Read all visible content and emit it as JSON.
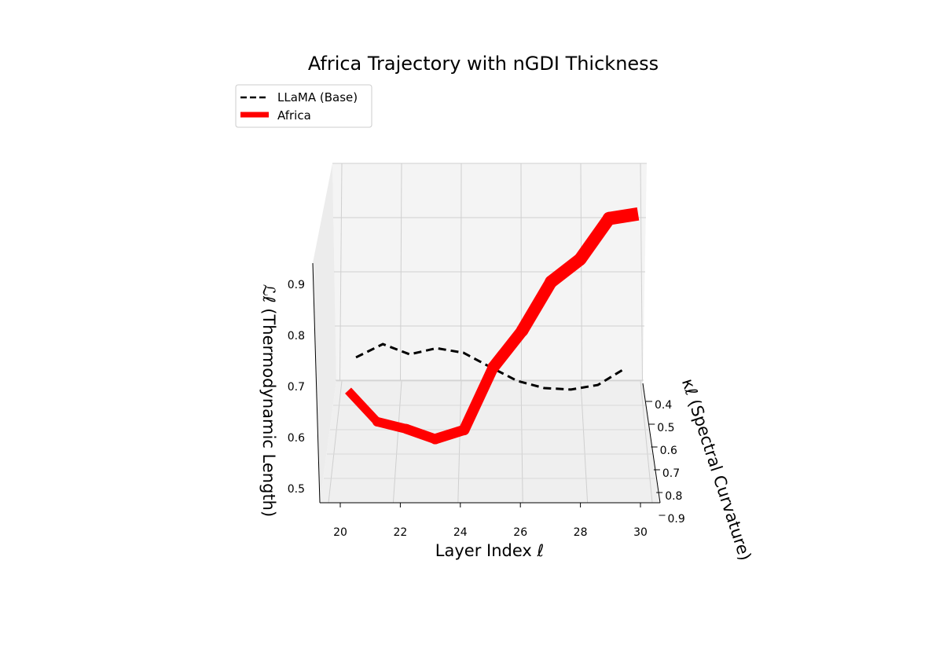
{
  "chart_data": {
    "type": "line",
    "title": "Africa Trajectory with nGDI Thickness",
    "xlabel": "Layer Index ℓ",
    "ylabel": "ℒℓ (Thermodynamic Length)",
    "zlabel": "κℓ (Spectral Curvature)",
    "x_ticks": [
      "20",
      "22",
      "24",
      "26",
      "28",
      "30"
    ],
    "y_ticks": [
      "0.5",
      "0.6",
      "0.7",
      "0.8",
      "0.9"
    ],
    "z_ticks": [
      "0.4",
      "0.5",
      "0.6",
      "0.7",
      "0.8",
      "0.9"
    ],
    "legend": {
      "placement": "top-left",
      "entries": [
        "LLaMA (Base)",
        "Africa"
      ]
    },
    "x": [
      20,
      21,
      22,
      23,
      24,
      25,
      26,
      27,
      28,
      29,
      30
    ],
    "series": [
      {
        "name": "LLaMA (Base)",
        "color": "#000000",
        "style": "dashed",
        "values": [
          0.757,
          0.783,
          0.763,
          0.775,
          0.766,
          0.738,
          0.711,
          0.697,
          0.694,
          0.703,
          0.735
        ]
      },
      {
        "name": "Africa",
        "color": "#ff0000",
        "style": "solid",
        "values": [
          0.692,
          0.631,
          0.617,
          0.597,
          0.615,
          0.737,
          0.809,
          0.905,
          0.949,
          1.029,
          1.038
        ],
        "ngdi_thickness": [
          0.4,
          0.5,
          0.55,
          0.6,
          0.65,
          0.75,
          0.8,
          0.85,
          0.85,
          0.9,
          0.9
        ]
      }
    ]
  }
}
